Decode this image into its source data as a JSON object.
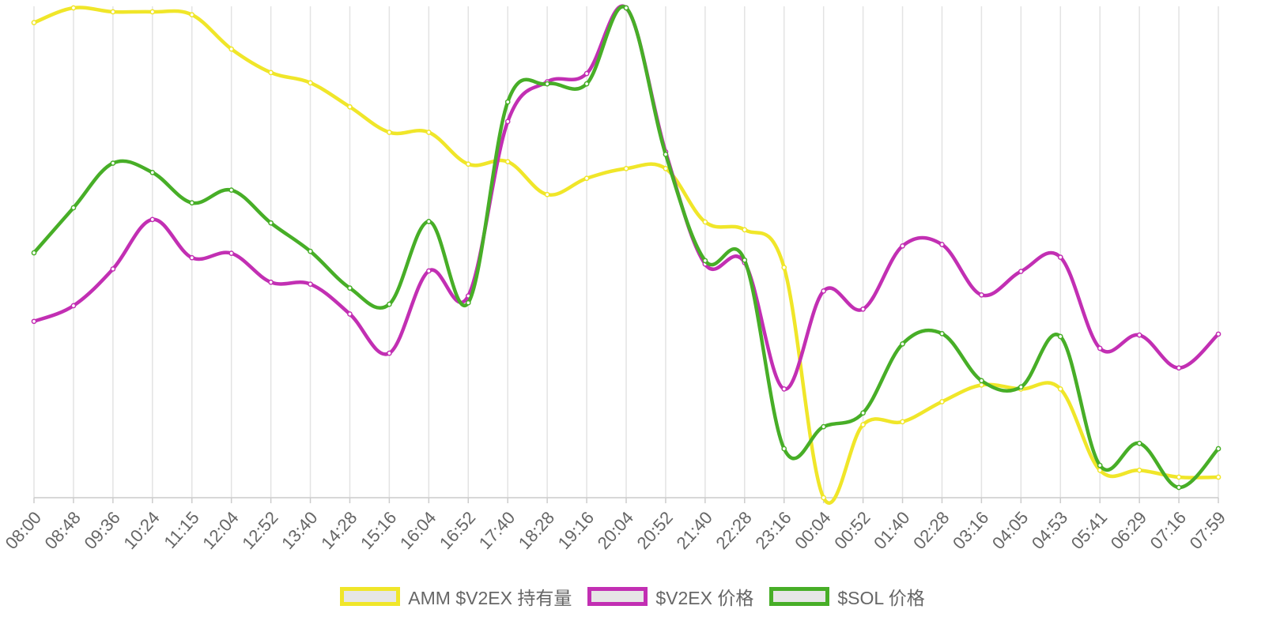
{
  "chart_data": {
    "type": "line",
    "x": [
      "08:00",
      "08:48",
      "09:36",
      "10:24",
      "11:15",
      "12:04",
      "12:52",
      "13:40",
      "14:28",
      "15:16",
      "16:04",
      "16:52",
      "17:40",
      "18:28",
      "19:16",
      "20:04",
      "20:52",
      "21:40",
      "22:28",
      "23:16",
      "00:04",
      "00:52",
      "01:40",
      "02:28",
      "03:16",
      "04:05",
      "04:53",
      "05:41",
      "06:29",
      "07:16",
      "07:59"
    ],
    "ylim": [
      0,
      100
    ],
    "y_axis_labels": false,
    "grid": "vertical",
    "legend": "bottom-center",
    "series": [
      {
        "name": "AMM $V2EX 持有量",
        "color": "#f0e629",
        "values": [
          97,
          100,
          99.2,
          99.2,
          98.6,
          91.6,
          86.8,
          84.7,
          79.8,
          74.6,
          74.6,
          68.1,
          68.6,
          61.9,
          65.2,
          67.2,
          67.2,
          56.3,
          54.7,
          47,
          0,
          14.9,
          15.5,
          19.6,
          23,
          22.2,
          22.2,
          5.6,
          5.6,
          4.2,
          4.2
        ]
      },
      {
        "name": "$V2EX 价格",
        "color": "#c22fb3",
        "values": [
          36,
          39.2,
          46.7,
          56.8,
          49,
          49.9,
          44,
          43.6,
          37.5,
          29.5,
          46.3,
          41.2,
          76.8,
          84.9,
          86.6,
          100,
          70.6,
          47.7,
          48,
          22.2,
          42.2,
          38.5,
          51.4,
          51.7,
          41.4,
          46.2,
          49.1,
          30.5,
          33.2,
          26.5,
          33.4
        ]
      },
      {
        "name": "$SOL 价格",
        "color": "#47ae27",
        "values": [
          50,
          59.2,
          68.3,
          66.4,
          60.2,
          62.8,
          56.1,
          50.3,
          42.8,
          39.5,
          56.4,
          39.8,
          80.8,
          84.5,
          84.5,
          100,
          70.1,
          48.4,
          48.5,
          10,
          14.5,
          17.3,
          31.4,
          33.5,
          23.9,
          22.6,
          32.9,
          6.6,
          11.1,
          2.1,
          10
        ]
      }
    ]
  }
}
